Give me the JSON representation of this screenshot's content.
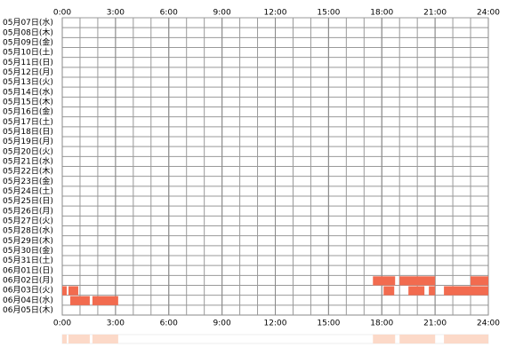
{
  "chart_data": {
    "type": "timeline",
    "color": "#f26b4f",
    "summary_color": "#fcd9c8",
    "grid": true,
    "xlim": [
      0,
      24
    ],
    "xticks": [
      {
        "value": 0,
        "label": "0:00"
      },
      {
        "value": 3,
        "label": "3:00"
      },
      {
        "value": 6,
        "label": "6:00"
      },
      {
        "value": 9,
        "label": "9:00"
      },
      {
        "value": 12,
        "label": "12:00"
      },
      {
        "value": 15,
        "label": "15:00"
      },
      {
        "value": 18,
        "label": "18:00"
      },
      {
        "value": 21,
        "label": "21:00"
      },
      {
        "value": 24,
        "label": "24:00"
      }
    ],
    "rows": [
      {
        "label": "05月07日(水)",
        "segments": []
      },
      {
        "label": "05月08日(木)",
        "segments": []
      },
      {
        "label": "05月09日(金)",
        "segments": []
      },
      {
        "label": "05月10日(土)",
        "segments": []
      },
      {
        "label": "05月11日(日)",
        "segments": []
      },
      {
        "label": "05月12日(月)",
        "segments": []
      },
      {
        "label": "05月13日(火)",
        "segments": []
      },
      {
        "label": "05月14日(水)",
        "segments": []
      },
      {
        "label": "05月15日(木)",
        "segments": []
      },
      {
        "label": "05月16日(金)",
        "segments": []
      },
      {
        "label": "05月17日(土)",
        "segments": []
      },
      {
        "label": "05月18日(日)",
        "segments": []
      },
      {
        "label": "05月19日(月)",
        "segments": []
      },
      {
        "label": "05月20日(火)",
        "segments": []
      },
      {
        "label": "05月21日(水)",
        "segments": []
      },
      {
        "label": "05月22日(木)",
        "segments": []
      },
      {
        "label": "05月23日(金)",
        "segments": []
      },
      {
        "label": "05月24日(土)",
        "segments": []
      },
      {
        "label": "05月25日(日)",
        "segments": []
      },
      {
        "label": "05月26日(月)",
        "segments": []
      },
      {
        "label": "05月27日(火)",
        "segments": []
      },
      {
        "label": "05月28日(水)",
        "segments": []
      },
      {
        "label": "05月29日(木)",
        "segments": []
      },
      {
        "label": "05月30日(金)",
        "segments": []
      },
      {
        "label": "05月31日(土)",
        "segments": []
      },
      {
        "label": "06月01日(日)",
        "segments": []
      },
      {
        "label": "06月02日(月)",
        "segments": [
          [
            17.5,
            18.75
          ],
          [
            19,
            21
          ],
          [
            23,
            24
          ]
        ]
      },
      {
        "label": "06月03日(火)",
        "segments": [
          [
            0,
            0.25
          ],
          [
            0.35,
            0.9
          ],
          [
            18.1,
            18.7
          ],
          [
            19.5,
            20.4
          ],
          [
            20.65,
            21
          ],
          [
            21.5,
            24
          ]
        ]
      },
      {
        "label": "06月04日(水)",
        "segments": [
          [
            0.45,
            1.55
          ],
          [
            1.7,
            3.15
          ]
        ]
      },
      {
        "label": "06月05日(木)",
        "segments": []
      }
    ]
  }
}
